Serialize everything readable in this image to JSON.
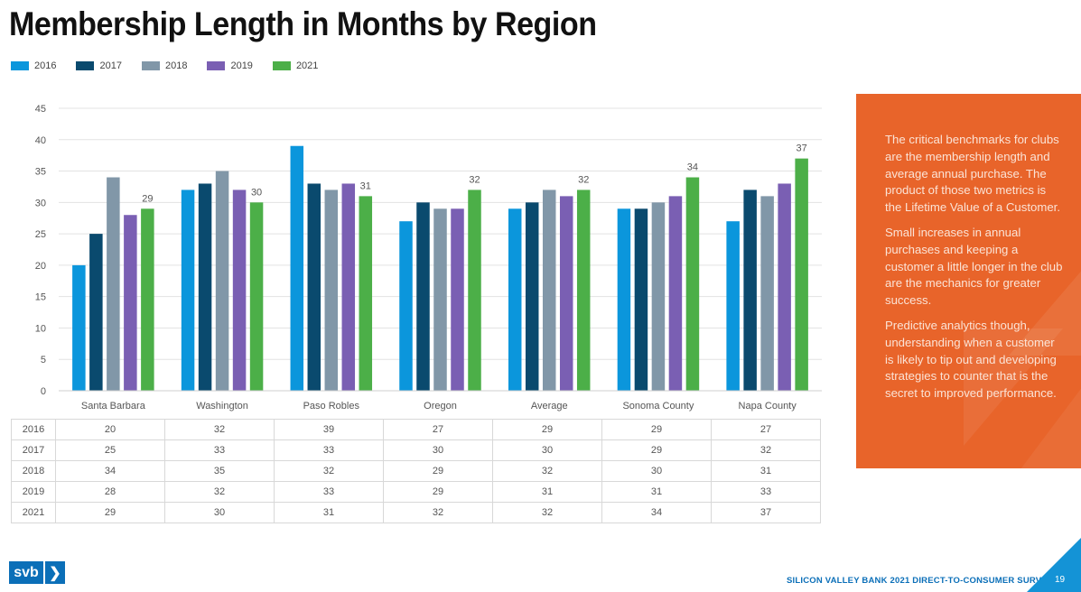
{
  "title": "Membership Length in Months by Region",
  "colors": {
    "2016": "#0b96dc",
    "2017": "#0a4a6e",
    "2018": "#8197a8",
    "2019": "#7a5fb3",
    "2021": "#4caf48",
    "panel": "#e8642a",
    "brand": "#0b6fb8"
  },
  "chart_data": {
    "type": "bar",
    "categories": [
      "Santa Barbara",
      "Washington",
      "Paso Robles",
      "Oregon",
      "Average",
      "Sonoma County",
      "Napa County"
    ],
    "series": [
      {
        "name": "2016",
        "values": [
          20,
          32,
          39,
          27,
          29,
          29,
          27
        ]
      },
      {
        "name": "2017",
        "values": [
          25,
          33,
          33,
          30,
          30,
          29,
          32
        ]
      },
      {
        "name": "2018",
        "values": [
          34,
          35,
          32,
          29,
          32,
          30,
          31
        ]
      },
      {
        "name": "2019",
        "values": [
          28,
          32,
          33,
          29,
          31,
          31,
          33
        ]
      },
      {
        "name": "2021",
        "values": [
          29,
          30,
          31,
          32,
          32,
          34,
          37
        ]
      }
    ],
    "data_labels_series": "2021",
    "ylim": [
      0,
      45
    ],
    "yticks": [
      0,
      5,
      10,
      15,
      20,
      25,
      30,
      35,
      40,
      45
    ],
    "grid": true,
    "legend": "top-left"
  },
  "panel": {
    "paragraphs": [
      "The critical benchmarks for clubs are the membership length and average annual purchase. The product of those two metrics is the Lifetime Value of a Customer.",
      "Small increases in annual purchases and keeping a customer a little longer in the club are the mechanics for greater success.",
      "Predictive analytics though, understanding when a customer is likely to tip out and developing strategies to counter that is the secret to improved performance."
    ]
  },
  "footer": {
    "logo": "svb",
    "logo_chevron": "❯",
    "survey": "SILICON VALLEY BANK 2021 DIRECT-TO-CONSUMER SURVEY",
    "page": "19"
  }
}
